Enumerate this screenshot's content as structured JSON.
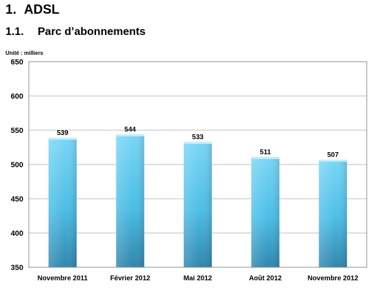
{
  "heading": {
    "number": "1.",
    "title": "ADSL"
  },
  "subheading": {
    "number": "1.1.",
    "title": "Parc d’abonnements"
  },
  "unit_label": "Unité : milliers",
  "colors": {
    "bar_top": "#79d6f6",
    "bar_mid": "#4cbde6",
    "bar_bottom": "#2f86ad",
    "cap": "#bdefff",
    "grid": "#bdbdbd",
    "frame": "#8c8c8c"
  },
  "chart_data": {
    "type": "bar",
    "categories": [
      "Novembre 2011",
      "Février 2012",
      "Mai 2012",
      "Août 2012",
      "Novembre 2012"
    ],
    "values": [
      539,
      544,
      533,
      511,
      507
    ],
    "ylim": [
      350,
      650
    ],
    "yticks": [
      350,
      400,
      450,
      500,
      550,
      600,
      650
    ],
    "grid": true,
    "legend": "none"
  }
}
